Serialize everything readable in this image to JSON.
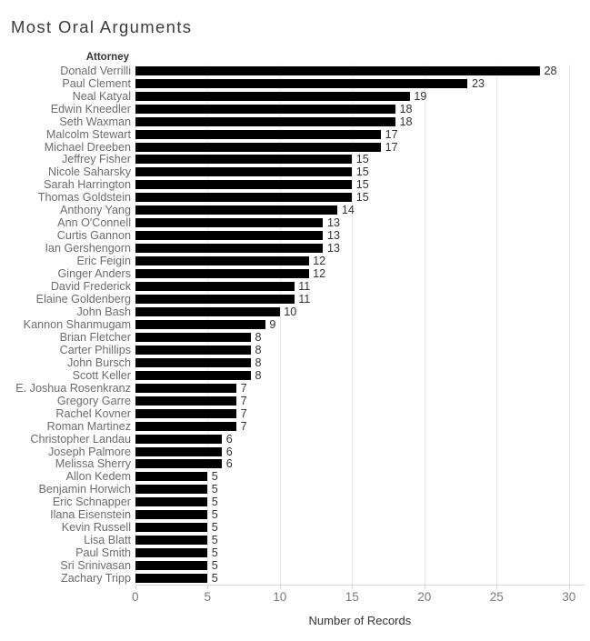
{
  "title": "Most Oral Arguments",
  "row_header": "Attorney",
  "x_axis": {
    "label": "Number of Records",
    "tick_labels": [
      "0",
      "5",
      "10",
      "15",
      "20",
      "25",
      "30"
    ]
  },
  "chart_data": {
    "type": "bar",
    "orientation": "horizontal",
    "title": "Most Oral Arguments",
    "xlabel": "Number of Records",
    "ylabel": "Attorney",
    "xlim": [
      0,
      30
    ],
    "xticks": [
      0,
      5,
      10,
      15,
      20,
      25,
      30
    ],
    "grid": true,
    "bar_color": "#000000",
    "categories": [
      "Donald Verrilli",
      "Paul Clement",
      "Neal Katyal",
      "Edwin Kneedler",
      "Seth Waxman",
      "Malcolm Stewart",
      "Michael Dreeben",
      "Jeffrey Fisher",
      "Nicole Saharsky",
      "Sarah Harrington",
      "Thomas Goldstein",
      "Anthony Yang",
      "Ann O'Connell",
      "Curtis Gannon",
      "Ian Gershengorn",
      "Eric Feigin",
      "Ginger Anders",
      "David Frederick",
      "Elaine Goldenberg",
      "John Bash",
      "Kannon Shanmugam",
      "Brian Fletcher",
      "Carter Phillips",
      "John Bursch",
      "Scott Keller",
      "E. Joshua Rosenkranz",
      "Gregory Garre",
      "Rachel Kovner",
      "Roman Martinez",
      "Christopher Landau",
      "Joseph Palmore",
      "Melissa Sherry",
      "Allon Kedem",
      "Benjamin Horwich",
      "Eric Schnapper",
      "Ilana Eisenstein",
      "Kevin Russell",
      "Lisa Blatt",
      "Paul Smith",
      "Sri Srinivasan",
      "Zachary Tripp"
    ],
    "values": [
      28,
      23,
      19,
      18,
      18,
      17,
      17,
      15,
      15,
      15,
      15,
      14,
      13,
      13,
      13,
      12,
      12,
      11,
      11,
      10,
      9,
      8,
      8,
      8,
      8,
      7,
      7,
      7,
      7,
      6,
      6,
      6,
      5,
      5,
      5,
      5,
      5,
      5,
      5,
      5,
      5
    ]
  },
  "colors": {
    "bar": "#000000",
    "gridline": "#eaeaea",
    "axis_line": "#d8d8d8",
    "title_text": "#3b3b3b",
    "category_text": "#6c6c6c",
    "value_text": "#333333",
    "tick_text": "#7b7b7b",
    "axis_title_text": "#333333",
    "background": "#ffffff"
  }
}
